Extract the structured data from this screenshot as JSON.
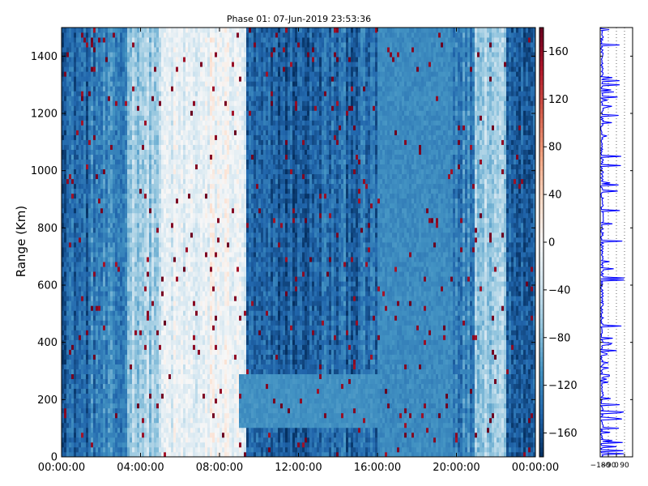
{
  "chart_data": [
    {
      "type": "heatmap",
      "title": "Phase 01: 07-Jun-2019 23:53:36",
      "xlabel": "",
      "ylabel": "Range (Km)",
      "xlim": [
        "00:00:00",
        "24:00:00"
      ],
      "ylim": [
        0,
        1500
      ],
      "x_ticks": [
        "00:00:00",
        "04:00:00",
        "08:00:00",
        "12:00:00",
        "16:00:00",
        "20:00:00",
        "00:00:00"
      ],
      "y_ticks": [
        0,
        200,
        400,
        600,
        800,
        1000,
        1200,
        1400
      ],
      "value_range": [
        -180,
        180
      ],
      "colormap": "RdBu_r",
      "grid": false,
      "time_bands": [
        {
          "start_h": 0.0,
          "end_h": 1.5,
          "phase": -140
        },
        {
          "start_h": 1.5,
          "end_h": 3.3,
          "phase": -125
        },
        {
          "start_h": 3.3,
          "end_h": 5.0,
          "phase": -60
        },
        {
          "start_h": 5.0,
          "end_h": 7.5,
          "phase": -20
        },
        {
          "start_h": 7.5,
          "end_h": 8.8,
          "phase": -5
        },
        {
          "start_h": 8.8,
          "end_h": 9.3,
          "phase": -20
        },
        {
          "start_h": 9.3,
          "end_h": 13.0,
          "phase": -150
        },
        {
          "start_h": 13.0,
          "end_h": 16.0,
          "phase": -140
        },
        {
          "start_h": 16.0,
          "end_h": 19.8,
          "phase": -115
        },
        {
          "start_h": 19.8,
          "end_h": 20.9,
          "phase": -120
        },
        {
          "start_h": 20.9,
          "end_h": 22.5,
          "phase": -60
        },
        {
          "start_h": 22.5,
          "end_h": 23.2,
          "phase": -140
        },
        {
          "start_h": 23.2,
          "end_h": 24.0,
          "phase": -150
        }
      ]
    },
    {
      "type": "colorbar",
      "ticks": [
        -160,
        -120,
        -80,
        -40,
        0,
        40,
        80,
        120,
        160
      ],
      "range": [
        -180,
        180
      ]
    },
    {
      "type": "line",
      "xlim": [
        -180,
        180
      ],
      "x_ticks": [
        -180,
        -90,
        0,
        90
      ],
      "ylim": [
        0,
        1500
      ],
      "series_color": "#0000ff",
      "typical_phase": -160,
      "grid": "dotted-vertical"
    }
  ]
}
